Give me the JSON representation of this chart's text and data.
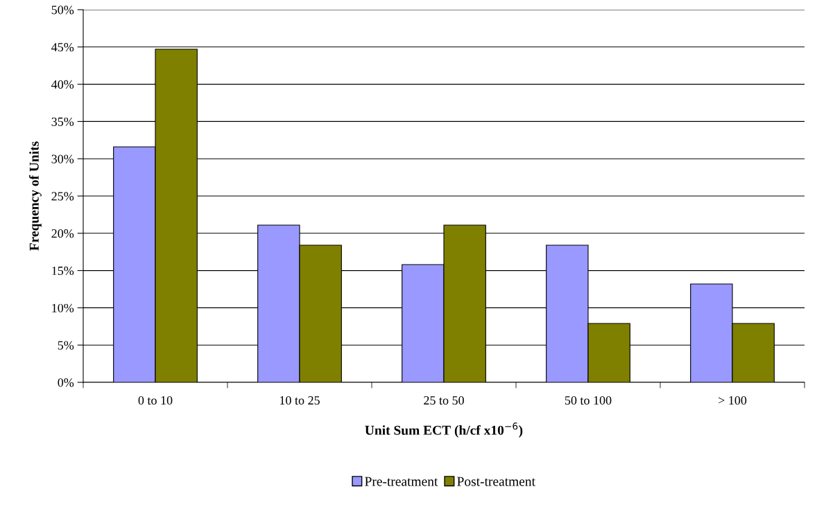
{
  "chart_data": {
    "type": "bar",
    "xlabel": "Unit Sum ECT (h/cf x10$^{−6}$)",
    "ylabel": "Frequency of Units",
    "categories": [
      "0 to 10",
      "10 to 25",
      "25 to 50",
      "50 to 100",
      "> 100"
    ],
    "series": [
      {
        "name": "Pre-treatment",
        "color": "#9999ff",
        "values": [
          31.6,
          21.1,
          15.8,
          18.4,
          13.2
        ]
      },
      {
        "name": "Post-treatment",
        "color": "#808000",
        "values": [
          44.7,
          18.4,
          21.1,
          7.9,
          7.9
        ]
      }
    ],
    "ylim": [
      0,
      50
    ],
    "yticks": [
      {
        "value": 0,
        "label": "0%"
      },
      {
        "value": 5,
        "label": "5%"
      },
      {
        "value": 10,
        "label": "10%"
      },
      {
        "value": 15,
        "label": "15%"
      },
      {
        "value": 20,
        "label": "20%"
      },
      {
        "value": 25,
        "label": "25%"
      },
      {
        "value": 30,
        "label": "30%"
      },
      {
        "value": 35,
        "label": "35%"
      },
      {
        "value": 40,
        "label": "40%"
      },
      {
        "value": 45,
        "label": "45%"
      },
      {
        "value": 50,
        "label": "50%"
      }
    ],
    "grid": "y",
    "legend": "bottom"
  }
}
